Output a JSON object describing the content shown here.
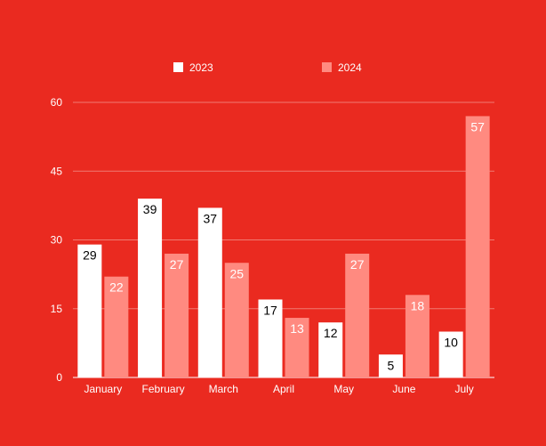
{
  "colors": {
    "background": "#ea2a20",
    "series_2023": "#ffffff",
    "series_2024": "#ff8a80",
    "label_2023": "#000000",
    "label_2024": "#ffffff",
    "gridline": "#f07a72"
  },
  "chart_data": {
    "type": "bar",
    "categories": [
      "January",
      "February",
      "March",
      "April",
      "May",
      "June",
      "July"
    ],
    "series": [
      {
        "name": "2023",
        "values": [
          29,
          39,
          37,
          17,
          12,
          5,
          10
        ]
      },
      {
        "name": "2024",
        "values": [
          22,
          27,
          25,
          13,
          27,
          18,
          57
        ]
      }
    ],
    "ylim": [
      0,
      60
    ],
    "yticks": [
      "0",
      "15",
      "30",
      "45",
      "60"
    ],
    "grid": true,
    "legend": "top"
  }
}
